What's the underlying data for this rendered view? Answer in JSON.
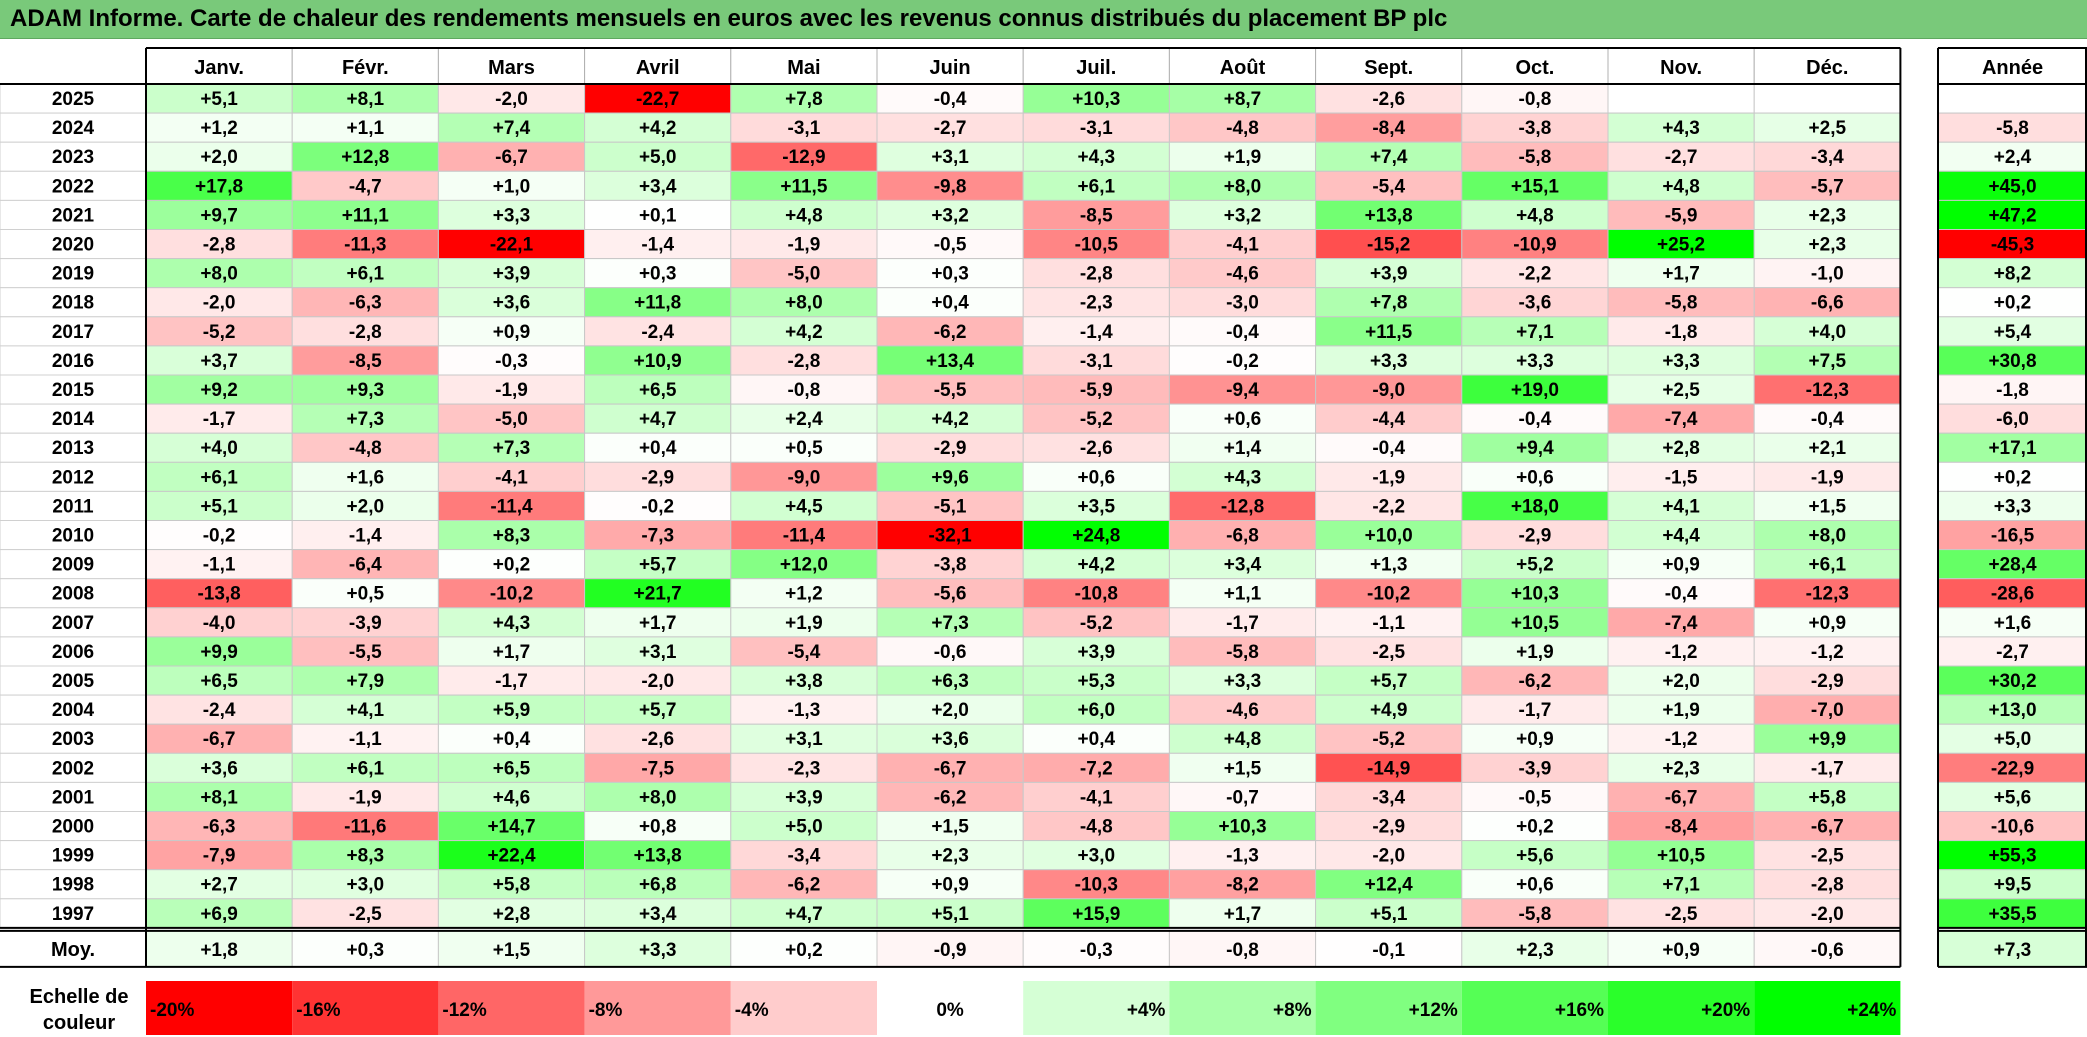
{
  "title": "ADAM Informe. Carte de chaleur des rendements mensuels en euros avec les revenus connus distribués du placement BP plc",
  "chart_data": {
    "type": "heatmap",
    "months": [
      "Janv.",
      "Févr.",
      "Mars",
      "Avril",
      "Mai",
      "Juin",
      "Juil.",
      "Août",
      "Sept.",
      "Oct.",
      "Nov.",
      "Déc."
    ],
    "year_header": "Année",
    "rows": [
      {
        "year": "2025",
        "values": [
          "+5,1",
          "+8,1",
          "-2,0",
          "-22,7",
          "+7,8",
          "-0,4",
          "+10,3",
          "+8,7",
          "-2,6",
          "-0,8",
          "",
          ""
        ],
        "annual": ""
      },
      {
        "year": "2024",
        "values": [
          "+1,2",
          "+1,1",
          "+7,4",
          "+4,2",
          "-3,1",
          "-2,7",
          "-3,1",
          "-4,8",
          "-8,4",
          "-3,8",
          "+4,3",
          "+2,5"
        ],
        "annual": "-5,8"
      },
      {
        "year": "2023",
        "values": [
          "+2,0",
          "+12,8",
          "-6,7",
          "+5,0",
          "-12,9",
          "+3,1",
          "+4,3",
          "+1,9",
          "+7,4",
          "-5,8",
          "-2,7",
          "-3,4"
        ],
        "annual": "+2,4"
      },
      {
        "year": "2022",
        "values": [
          "+17,8",
          "-4,7",
          "+1,0",
          "+3,4",
          "+11,5",
          "-9,8",
          "+6,1",
          "+8,0",
          "-5,4",
          "+15,1",
          "+4,8",
          "-5,7"
        ],
        "annual": "+45,0"
      },
      {
        "year": "2021",
        "values": [
          "+9,7",
          "+11,1",
          "+3,3",
          "+0,1",
          "+4,8",
          "+3,2",
          "-8,5",
          "+3,2",
          "+13,8",
          "+4,8",
          "-5,9",
          "+2,3"
        ],
        "annual": "+47,2"
      },
      {
        "year": "2020",
        "values": [
          "-2,8",
          "-11,3",
          "-22,1",
          "-1,4",
          "-1,9",
          "-0,5",
          "-10,5",
          "-4,1",
          "-15,2",
          "-10,9",
          "+25,2",
          "+2,3"
        ],
        "annual": "-45,3"
      },
      {
        "year": "2019",
        "values": [
          "+8,0",
          "+6,1",
          "+3,9",
          "+0,3",
          "-5,0",
          "+0,3",
          "-2,8",
          "-4,6",
          "+3,9",
          "-2,2",
          "+1,7",
          "-1,0"
        ],
        "annual": "+8,2"
      },
      {
        "year": "2018",
        "values": [
          "-2,0",
          "-6,3",
          "+3,6",
          "+11,8",
          "+8,0",
          "+0,4",
          "-2,3",
          "-3,0",
          "+7,8",
          "-3,6",
          "-5,8",
          "-6,6"
        ],
        "annual": "+0,2"
      },
      {
        "year": "2017",
        "values": [
          "-5,2",
          "-2,8",
          "+0,9",
          "-2,4",
          "+4,2",
          "-6,2",
          "-1,4",
          "-0,4",
          "+11,5",
          "+7,1",
          "-1,8",
          "+4,0"
        ],
        "annual": "+5,4"
      },
      {
        "year": "2016",
        "values": [
          "+3,7",
          "-8,5",
          "-0,3",
          "+10,9",
          "-2,8",
          "+13,4",
          "-3,1",
          "-0,2",
          "+3,3",
          "+3,3",
          "+3,3",
          "+7,5"
        ],
        "annual": "+30,8"
      },
      {
        "year": "2015",
        "values": [
          "+9,2",
          "+9,3",
          "-1,9",
          "+6,5",
          "-0,8",
          "-5,5",
          "-5,9",
          "-9,4",
          "-9,0",
          "+19,0",
          "+2,5",
          "-12,3"
        ],
        "annual": "-1,8"
      },
      {
        "year": "2014",
        "values": [
          "-1,7",
          "+7,3",
          "-5,0",
          "+4,7",
          "+2,4",
          "+4,2",
          "-5,2",
          "+0,6",
          "-4,4",
          "-0,4",
          "-7,4",
          "-0,4"
        ],
        "annual": "-6,0"
      },
      {
        "year": "2013",
        "values": [
          "+4,0",
          "-4,8",
          "+7,3",
          "+0,4",
          "+0,5",
          "-2,9",
          "-2,6",
          "+1,4",
          "-0,4",
          "+9,4",
          "+2,8",
          "+2,1"
        ],
        "annual": "+17,1"
      },
      {
        "year": "2012",
        "values": [
          "+6,1",
          "+1,6",
          "-4,1",
          "-2,9",
          "-9,0",
          "+9,6",
          "+0,6",
          "+4,3",
          "-1,9",
          "+0,6",
          "-1,5",
          "-1,9"
        ],
        "annual": "+0,2"
      },
      {
        "year": "2011",
        "values": [
          "+5,1",
          "+2,0",
          "-11,4",
          "-0,2",
          "+4,5",
          "-5,1",
          "+3,5",
          "-12,8",
          "-2,2",
          "+18,0",
          "+4,1",
          "+1,5"
        ],
        "annual": "+3,3"
      },
      {
        "year": "2010",
        "values": [
          "-0,2",
          "-1,4",
          "+8,3",
          "-7,3",
          "-11,4",
          "-32,1",
          "+24,8",
          "-6,8",
          "+10,0",
          "-2,9",
          "+4,4",
          "+8,0"
        ],
        "annual": "-16,5"
      },
      {
        "year": "2009",
        "values": [
          "-1,1",
          "-6,4",
          "+0,2",
          "+5,7",
          "+12,0",
          "-3,8",
          "+4,2",
          "+3,4",
          "+1,3",
          "+5,2",
          "+0,9",
          "+6,1"
        ],
        "annual": "+28,4"
      },
      {
        "year": "2008",
        "values": [
          "-13,8",
          "+0,5",
          "-10,2",
          "+21,7",
          "+1,2",
          "-5,6",
          "-10,8",
          "+1,1",
          "-10,2",
          "+10,3",
          "-0,4",
          "-12,3"
        ],
        "annual": "-28,6"
      },
      {
        "year": "2007",
        "values": [
          "-4,0",
          "-3,9",
          "+4,3",
          "+1,7",
          "+1,9",
          "+7,3",
          "-5,2",
          "-1,7",
          "-1,1",
          "+10,5",
          "-7,4",
          "+0,9"
        ],
        "annual": "+1,6"
      },
      {
        "year": "2006",
        "values": [
          "+9,9",
          "-5,5",
          "+1,7",
          "+3,1",
          "-5,4",
          "-0,6",
          "+3,9",
          "-5,8",
          "-2,5",
          "+1,9",
          "-1,2",
          "-1,2"
        ],
        "annual": "-2,7"
      },
      {
        "year": "2005",
        "values": [
          "+6,5",
          "+7,9",
          "-1,7",
          "-2,0",
          "+3,8",
          "+6,3",
          "+5,3",
          "+3,3",
          "+5,7",
          "-6,2",
          "+2,0",
          "-2,9"
        ],
        "annual": "+30,2"
      },
      {
        "year": "2004",
        "values": [
          "-2,4",
          "+4,1",
          "+5,9",
          "+5,7",
          "-1,3",
          "+2,0",
          "+6,0",
          "-4,6",
          "+4,9",
          "-1,7",
          "+1,9",
          "-7,0"
        ],
        "annual": "+13,0"
      },
      {
        "year": "2003",
        "values": [
          "-6,7",
          "-1,1",
          "+0,4",
          "-2,6",
          "+3,1",
          "+3,6",
          "+0,4",
          "+4,8",
          "-5,2",
          "+0,9",
          "-1,2",
          "+9,9"
        ],
        "annual": "+5,0"
      },
      {
        "year": "2002",
        "values": [
          "+3,6",
          "+6,1",
          "+6,5",
          "-7,5",
          "-2,3",
          "-6,7",
          "-7,2",
          "+1,5",
          "-14,9",
          "-3,9",
          "+2,3",
          "-1,7"
        ],
        "annual": "-22,9"
      },
      {
        "year": "2001",
        "values": [
          "+8,1",
          "-1,9",
          "+4,6",
          "+8,0",
          "+3,9",
          "-6,2",
          "-4,1",
          "-0,7",
          "-3,4",
          "-0,5",
          "-6,7",
          "+5,8"
        ],
        "annual": "+5,6"
      },
      {
        "year": "2000",
        "values": [
          "-6,3",
          "-11,6",
          "+14,7",
          "+0,8",
          "+5,0",
          "+1,5",
          "-4,8",
          "+10,3",
          "-2,9",
          "+0,2",
          "-8,4",
          "-6,7"
        ],
        "annual": "-10,6"
      },
      {
        "year": "1999",
        "values": [
          "-7,9",
          "+8,3",
          "+22,4",
          "+13,8",
          "-3,4",
          "+2,3",
          "+3,0",
          "-1,3",
          "-2,0",
          "+5,6",
          "+10,5",
          "-2,5"
        ],
        "annual": "+55,3"
      },
      {
        "year": "1998",
        "values": [
          "+2,7",
          "+3,0",
          "+5,8",
          "+6,8",
          "-6,2",
          "+0,9",
          "-10,3",
          "-8,2",
          "+12,4",
          "+0,6",
          "+7,1",
          "-2,8"
        ],
        "annual": "+9,5"
      },
      {
        "year": "1997",
        "values": [
          "+6,9",
          "-2,5",
          "+2,8",
          "+3,4",
          "+4,7",
          "+5,1",
          "+15,9",
          "+1,7",
          "+5,1",
          "-5,8",
          "-2,5",
          "-2,0"
        ],
        "annual": "+35,5"
      }
    ],
    "average": {
      "label": "Moy.",
      "values": [
        "+1,8",
        "+0,3",
        "+1,5",
        "+3,3",
        "+0,2",
        "-0,9",
        "-0,3",
        "-0,8",
        "-0,1",
        "+2,3",
        "+0,9",
        "-0,6"
      ],
      "annual": "+7,3"
    },
    "scale": {
      "label_line1": "Echelle de",
      "label_line2": "couleur",
      "stops": [
        "-20%",
        "-16%",
        "-12%",
        "-8%",
        "-4%",
        "0%",
        "+4%",
        "+8%",
        "+12%",
        "+16%",
        "+20%",
        "+24%"
      ]
    },
    "colors": {
      "negative_max": "#ff0000",
      "neutral": "#ffffff",
      "positive_max": "#00ff00",
      "title_bg": "#79c97a"
    }
  }
}
